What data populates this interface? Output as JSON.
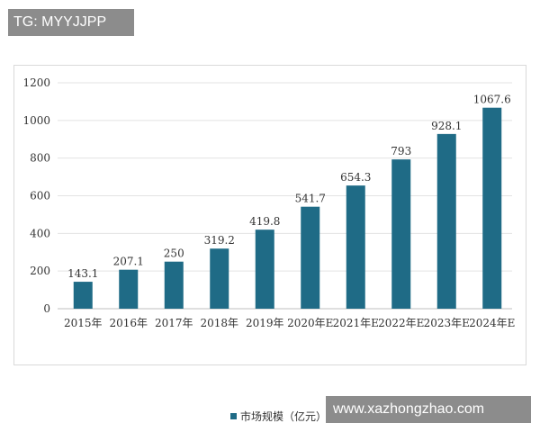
{
  "overlay": {
    "tag_text": "TG: MYYJJPP"
  },
  "watermark": {
    "text": "www.xazhongzhao.com"
  },
  "colors": {
    "bar": "#1f6b86",
    "grid": "#e3e3e3",
    "axis": "#bfbfbf"
  },
  "chart_data": {
    "type": "bar",
    "title": "",
    "xlabel": "",
    "ylabel": "",
    "ylim": [
      0,
      1200
    ],
    "yticks": [
      0,
      200,
      400,
      600,
      800,
      1000,
      1200
    ],
    "grid": true,
    "legend_position": "bottom",
    "categories": [
      "2015年",
      "2016年",
      "2017年",
      "2018年",
      "2019年",
      "2020年E",
      "2021年E",
      "2022年E",
      "2023年E",
      "2024年E"
    ],
    "series": [
      {
        "name": "市场规模（亿元）",
        "values": [
          143.1,
          207.1,
          250,
          319.2,
          419.8,
          541.7,
          654.3,
          793,
          928.1,
          1067.6
        ],
        "labels": [
          "143.1",
          "207.1",
          "250",
          "319.2",
          "419.8",
          "541.7",
          "654.3",
          "793",
          "928.1",
          "1067.6"
        ]
      }
    ]
  }
}
